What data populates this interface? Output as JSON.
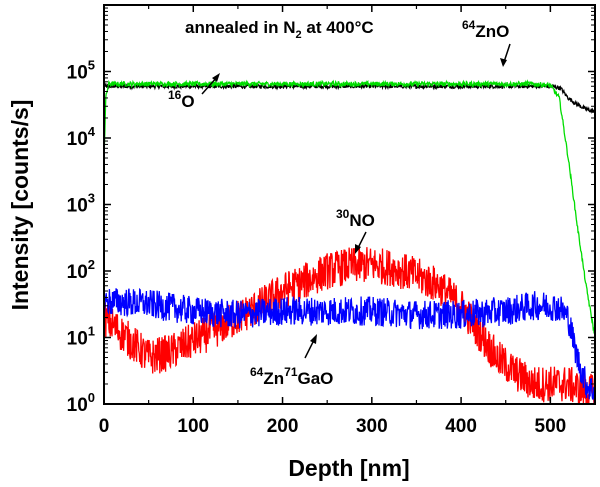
{
  "chart_data": {
    "type": "line",
    "title": "",
    "xlabel": "Depth [nm]",
    "ylabel": "Intensity [counts/s]",
    "xlim": [
      0,
      550
    ],
    "ylim": [
      1,
      1000000
    ],
    "yscale": "log",
    "x_ticks": [
      0,
      100,
      200,
      300,
      400,
      500
    ],
    "x_tick_labels": [
      "0",
      "100",
      "200",
      "300",
      "400",
      "500"
    ],
    "y_ticks": [
      1,
      10,
      100,
      1000,
      10000,
      100000
    ],
    "y_tick_base": "10",
    "y_tick_exponents": [
      "0",
      "1",
      "2",
      "3",
      "4",
      "5"
    ],
    "grid": false,
    "annotations": {
      "condition": {
        "main": "annealed in N",
        "sub": "2",
        "rest": " at 400°C"
      },
      "zno": {
        "sup": "64",
        "text": "ZnO"
      },
      "o": {
        "sup": "16",
        "text": "O"
      },
      "no": {
        "sup": "30",
        "text": "NO"
      },
      "znga": {
        "sup1": "64",
        "text1": "Zn",
        "sup2": "71",
        "text2": "GaO"
      }
    },
    "series": [
      {
        "name": "64ZnO",
        "color": "#000000",
        "x": [
          0,
          5,
          50,
          100,
          200,
          300,
          400,
          480,
          500,
          508,
          512,
          520,
          530,
          540,
          550
        ],
        "y": [
          60000,
          60000,
          60000,
          60000,
          60000,
          60000,
          60000,
          60000,
          60000,
          58000,
          55000,
          40000,
          32000,
          27000,
          25000
        ]
      },
      {
        "name": "16O",
        "color": "#00dd00",
        "x": [
          0,
          2,
          5,
          50,
          100,
          200,
          300,
          400,
          480,
          500,
          510,
          520,
          530,
          540,
          550
        ],
        "y": [
          4500,
          40000,
          65000,
          65000,
          65000,
          65000,
          65000,
          65000,
          65000,
          62000,
          40000,
          5000,
          500,
          60,
          10
        ]
      },
      {
        "name": "30NO",
        "color": "#ff0000",
        "x": [
          0,
          25,
          50,
          75,
          100,
          125,
          150,
          175,
          200,
          225,
          250,
          275,
          300,
          325,
          350,
          375,
          400,
          420,
          440,
          460,
          480,
          500,
          520,
          540,
          550
        ],
        "y": [
          20,
          10,
          5,
          6,
          9,
          13,
          20,
          30,
          50,
          70,
          100,
          120,
          125,
          110,
          85,
          60,
          30,
          12,
          5,
          3,
          2,
          2,
          2,
          1.5,
          1.5
        ]
      },
      {
        "name": "64Zn71GaO",
        "color": "#0000ff",
        "x": [
          0,
          25,
          50,
          100,
          150,
          200,
          250,
          300,
          350,
          400,
          450,
          480,
          500,
          510,
          520,
          530,
          540,
          550
        ],
        "y": [
          35,
          34,
          32,
          25,
          22,
          25,
          25,
          25,
          22,
          22,
          25,
          30,
          30,
          28,
          20,
          5,
          2,
          1.5
        ]
      }
    ]
  }
}
